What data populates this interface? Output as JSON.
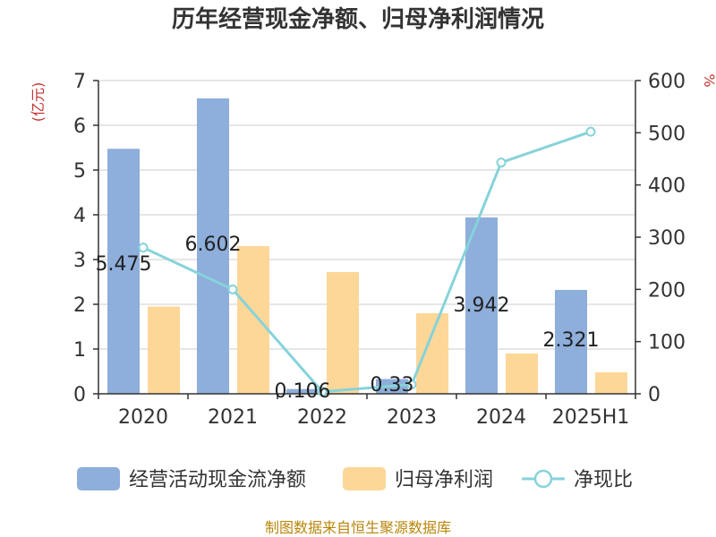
{
  "chart_data": {
    "type": "bar+line",
    "title": "历年经营现金净额、归母净利润情况",
    "categories": [
      "2020",
      "2021",
      "2022",
      "2023",
      "2024",
      "2025H1"
    ],
    "series": [
      {
        "name": "经营活动现金流净额",
        "type": "bar",
        "axis": "left",
        "color": "#8eaedb",
        "values": [
          5.475,
          6.602,
          0.106,
          0.33,
          3.942,
          2.321
        ],
        "labels": [
          "5.475",
          "6.602",
          "0.106",
          "0.33",
          "3.942",
          "2.321"
        ]
      },
      {
        "name": "归母净利润",
        "type": "bar",
        "axis": "left",
        "color": "#fdd798",
        "values": [
          1.95,
          3.3,
          2.72,
          1.8,
          0.9,
          0.48
        ]
      },
      {
        "name": "净现比",
        "type": "line",
        "axis": "right",
        "color": "#86d3da",
        "values": [
          280,
          200,
          4,
          18,
          443,
          502
        ]
      }
    ],
    "left_axis": {
      "label": "(亿元)",
      "min": 0,
      "max": 7,
      "ticks": [
        "0",
        "1",
        "2",
        "3",
        "4",
        "5",
        "6",
        "7"
      ]
    },
    "right_axis": {
      "label": "%",
      "min": 0,
      "max": 600,
      "ticks": [
        "0",
        "100",
        "200",
        "300",
        "400",
        "500",
        "600"
      ]
    },
    "grid": true,
    "legend_position": "bottom"
  },
  "source": "制图数据来自恒生聚源数据库"
}
